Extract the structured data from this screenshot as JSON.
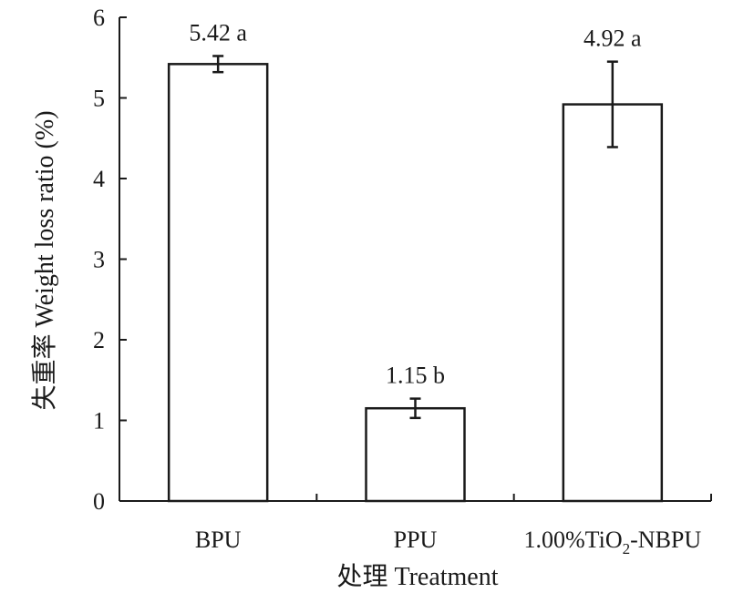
{
  "chart_data": {
    "type": "bar",
    "categories": [
      "BPU",
      "PPU",
      "1.00%TiO2-NBPU"
    ],
    "category_display": [
      {
        "main": "BPU",
        "sub": "",
        "tail": ""
      },
      {
        "main": "PPU",
        "sub": "",
        "tail": ""
      },
      {
        "main": "1.00%TiO",
        "sub": "2",
        "tail": "-NBPU"
      }
    ],
    "values": [
      5.42,
      1.15,
      4.92
    ],
    "error_bars": [
      0.1,
      0.12,
      0.53
    ],
    "data_labels": [
      "5.42 a",
      "1.15 b",
      "4.92 a"
    ],
    "xlabel": "处理 Treatment",
    "ylabel": "失重率 Weight loss ratio (%)",
    "ylim": [
      0,
      6
    ],
    "yticks": [
      "0",
      "1",
      "2",
      "3",
      "4",
      "5",
      "6"
    ],
    "grid": false,
    "legend": "none",
    "colors": {
      "bar_fill": "#ffffff",
      "stroke": "#1a1a1a"
    }
  }
}
